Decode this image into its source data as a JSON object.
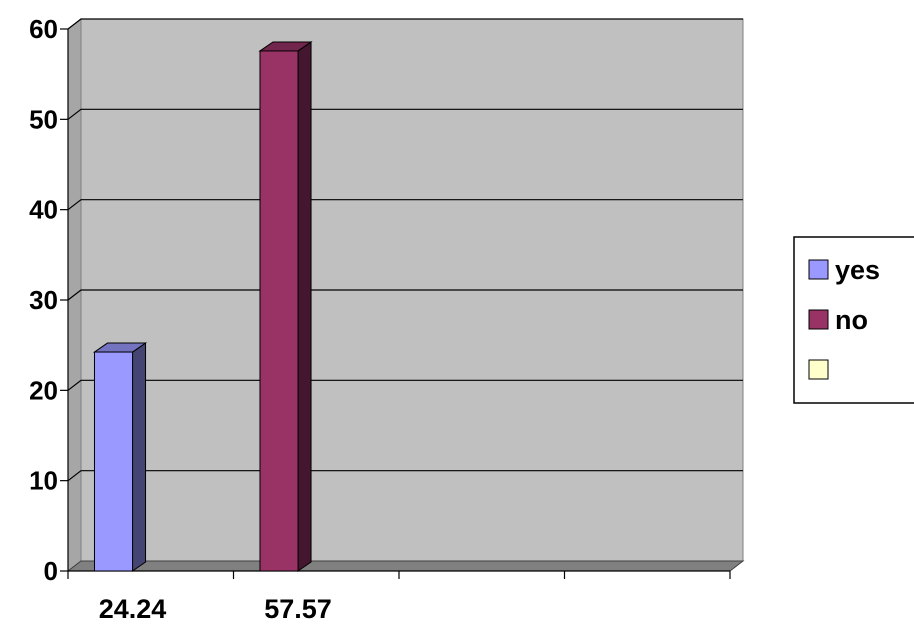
{
  "chart_data": {
    "type": "bar",
    "categories": [
      "24.24",
      "57.57",
      "",
      ""
    ],
    "series": [
      {
        "name": "yes",
        "color": "#9999ff",
        "values": [
          24.24,
          null,
          null,
          null
        ]
      },
      {
        "name": "no",
        "color": "#993366",
        "values": [
          null,
          57.57,
          null,
          null
        ]
      },
      {
        "name": "",
        "color": "#ffffcc",
        "values": [
          null,
          null,
          null,
          null
        ]
      }
    ],
    "ylim": [
      0,
      60
    ],
    "yticks": [
      0,
      10,
      20,
      30,
      40,
      50,
      60
    ],
    "grid": true,
    "legend": "right",
    "plot_background": "#c0c0c0",
    "title": "",
    "xlabel": "",
    "ylabel": ""
  }
}
